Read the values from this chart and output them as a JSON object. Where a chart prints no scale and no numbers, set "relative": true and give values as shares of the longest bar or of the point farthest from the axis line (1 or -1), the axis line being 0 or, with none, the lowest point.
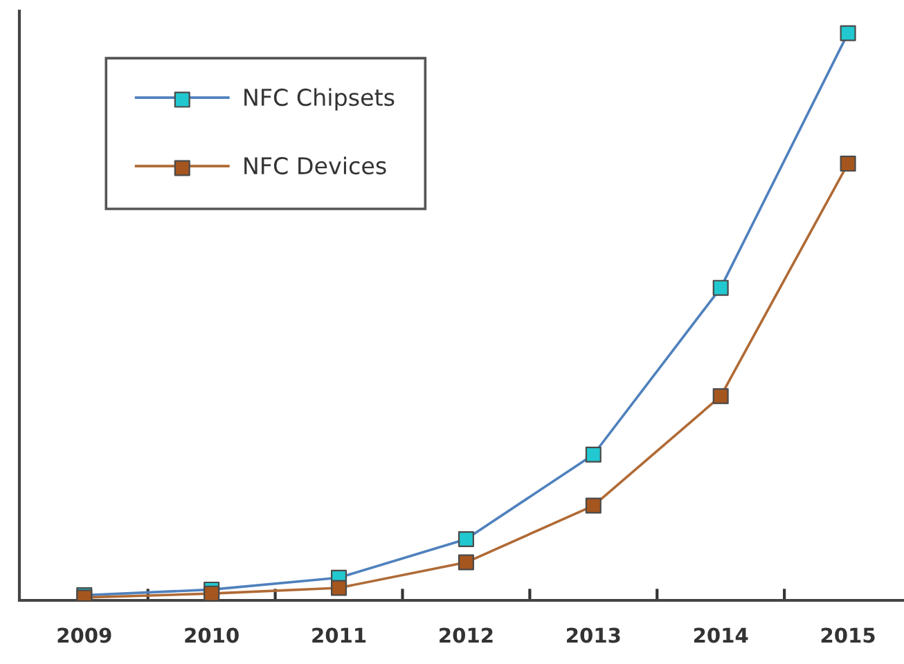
{
  "chart_data": {
    "type": "line",
    "relative": true,
    "categories": [
      "2009",
      "2010",
      "2011",
      "2012",
      "2013",
      "2014",
      "2015"
    ],
    "series": [
      {
        "name": "NFC Chipsets",
        "color": "#4f81bd",
        "colors": [
          "#22c8d0",
          "#22c8d0",
          "#22c8d0",
          "#22c8d0",
          "#22c8d0",
          "#22c8d0",
          "#22c8d0"
        ],
        "values": [
          0.009,
          0.019,
          0.04,
          0.108,
          0.257,
          0.551,
          1.0
        ]
      },
      {
        "name": "NFC Devices",
        "color": "#b06a35",
        "colors": [
          "#a5561f",
          "#a5561f",
          "#a5561f",
          "#a5561f",
          "#a5561f",
          "#a5561f",
          "#a5561f"
        ],
        "values": [
          0.005,
          0.012,
          0.022,
          0.067,
          0.167,
          0.36,
          0.77
        ]
      }
    ],
    "marker": "square",
    "line_style": "solid",
    "legend": "top left",
    "grid": false
  }
}
